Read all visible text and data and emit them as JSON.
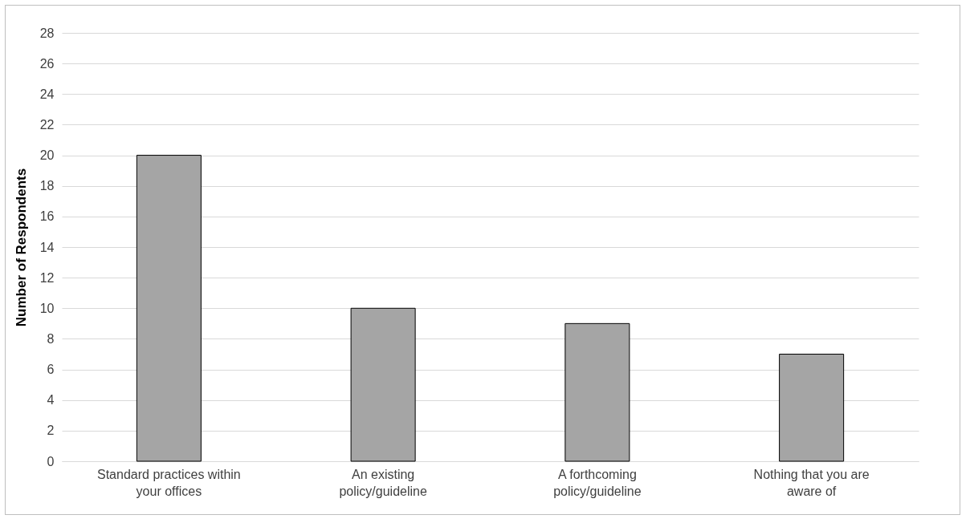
{
  "chart_data": {
    "type": "bar",
    "ylabel": "Number of Respondents",
    "categories": [
      "Standard practices within your offices",
      "An existing policy/guideline",
      "A forthcoming policy/guideline",
      "Nothing that you are aware of"
    ],
    "values": [
      20,
      10,
      9,
      7
    ],
    "color": "#a5a5a5",
    "ylim": [
      0,
      28
    ],
    "yticks": [
      0,
      2,
      4,
      6,
      8,
      10,
      12,
      14,
      16,
      18,
      20,
      22,
      24,
      26,
      28
    ],
    "grid": "y"
  }
}
